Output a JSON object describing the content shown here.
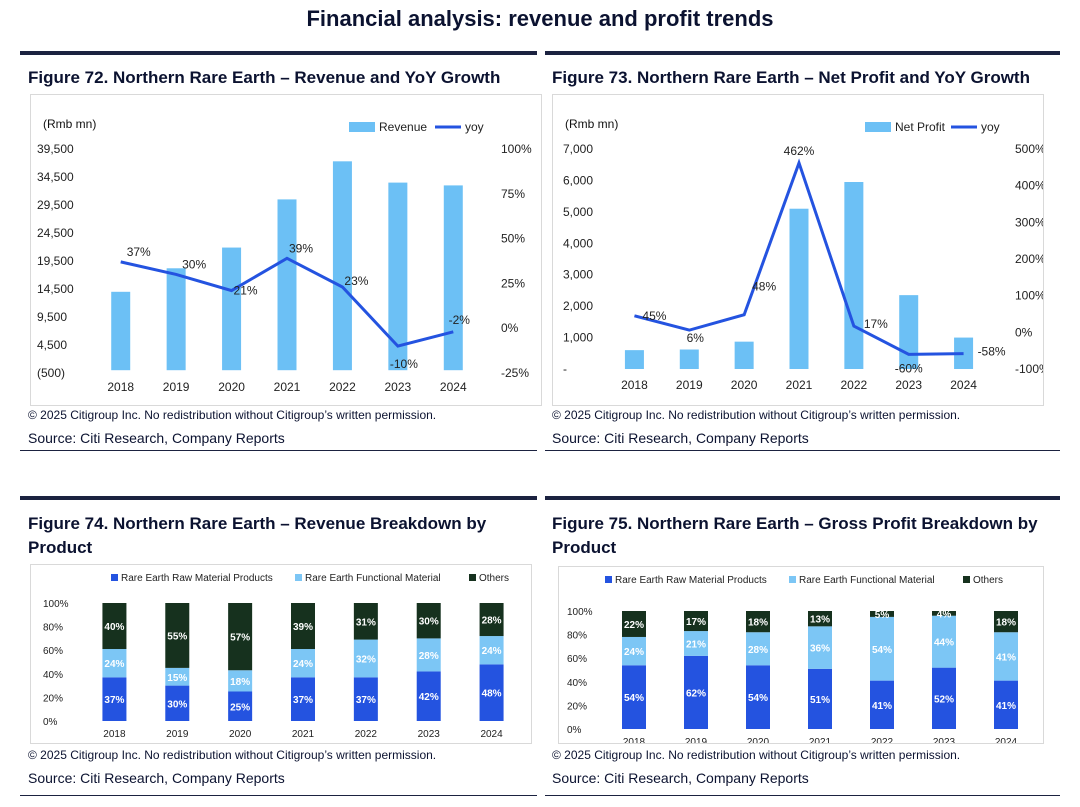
{
  "page": {
    "title": "Financial analysis: revenue and profit trends",
    "copyright": "© 2025 Citigroup Inc. No redistribution without Citigroup’s written permission.",
    "source": "Source: Citi Research, Company Reports"
  },
  "colors": {
    "revenue_bar": "#6cc0f5",
    "yoy_line": "#2453e0",
    "raw_material": "#2453e0",
    "functional_material": "#7cc6f5",
    "others": "#16311e",
    "rule": "#1b2240"
  },
  "chart_data": [
    {
      "id": "fig72",
      "type": "bar",
      "title": "Figure 72. Northern Rare Earth – Revenue and YoY Growth",
      "unit_label": "(Rmb mn)",
      "categories": [
        "2018",
        "2019",
        "2020",
        "2021",
        "2022",
        "2023",
        "2024"
      ],
      "series": [
        {
          "name": "Revenue",
          "type": "bar",
          "axis": "left",
          "values": [
            14000,
            18200,
            21900,
            30500,
            37300,
            33500,
            33000
          ]
        },
        {
          "name": "yoy",
          "type": "line",
          "axis": "right",
          "values": [
            37,
            30,
            21,
            39,
            23,
            -10,
            -2
          ],
          "labels": [
            "37%",
            "30%",
            "21%",
            "39%",
            "23%",
            "-10%",
            "-2%"
          ]
        }
      ],
      "left_axis": {
        "ylim": [
          -500,
          39500
        ],
        "ticks": [
          "(500)",
          "4,500",
          "9,500",
          "14,500",
          "19,500",
          "24,500",
          "29,500",
          "34,500",
          "39,500"
        ]
      },
      "right_axis": {
        "ylim": [
          -25,
          100
        ],
        "ticks": [
          "-25%",
          "0%",
          "25%",
          "50%",
          "75%",
          "100%"
        ]
      },
      "legend": "top-right"
    },
    {
      "id": "fig73",
      "type": "bar",
      "title": "Figure 73. Northern Rare Earth – Net Profit and YoY Growth",
      "unit_label": "(Rmb mn)",
      "categories": [
        "2018",
        "2019",
        "2020",
        "2021",
        "2022",
        "2023",
        "2024"
      ],
      "series": [
        {
          "name": "Net Profit",
          "type": "bar",
          "axis": "left",
          "values": [
            600,
            620,
            870,
            5100,
            5950,
            2350,
            1000
          ]
        },
        {
          "name": "yoy",
          "type": "line",
          "axis": "right",
          "values": [
            45,
            6,
            48,
            462,
            17,
            -60,
            -58
          ],
          "labels": [
            "45%",
            "6%",
            "48%",
            "462%",
            "17%",
            "-60%",
            "-58%"
          ]
        }
      ],
      "left_axis": {
        "ylim": [
          0,
          7000
        ],
        "ticks": [
          "-",
          "1,000",
          "2,000",
          "3,000",
          "4,000",
          "5,000",
          "6,000",
          "7,000"
        ]
      },
      "right_axis": {
        "ylim": [
          -100,
          500
        ],
        "ticks": [
          "-100%",
          "0%",
          "100%",
          "200%",
          "300%",
          "400%",
          "500%"
        ]
      },
      "legend": "top-right"
    },
    {
      "id": "fig74",
      "type": "bar",
      "stacked": true,
      "title": "Figure 74. Northern Rare Earth – Revenue Breakdown by Product",
      "categories": [
        "2018",
        "2019",
        "2020",
        "2021",
        "2022",
        "2023",
        "2024"
      ],
      "series": [
        {
          "name": "Rare Earth Raw Material Products",
          "values": [
            37,
            30,
            25,
            37,
            37,
            42,
            48
          ]
        },
        {
          "name": "Rare Earth Functional Material",
          "values": [
            24,
            15,
            18,
            24,
            32,
            28,
            24
          ]
        },
        {
          "name": "Others",
          "values": [
            40,
            55,
            57,
            39,
            31,
            30,
            28
          ]
        }
      ],
      "ylim": [
        0,
        100
      ],
      "ticks": [
        "0%",
        "20%",
        "40%",
        "60%",
        "80%",
        "100%"
      ],
      "legend": "top"
    },
    {
      "id": "fig75",
      "type": "bar",
      "stacked": true,
      "title": "Figure 75. Northern Rare Earth – Gross Profit Breakdown by Product",
      "categories": [
        "2018",
        "2019",
        "2020",
        "2021",
        "2022",
        "2023",
        "2024"
      ],
      "series": [
        {
          "name": "Rare Earth Raw Material Products",
          "values": [
            54,
            62,
            54,
            51,
            41,
            52,
            41
          ]
        },
        {
          "name": "Rare Earth Functional Material",
          "values": [
            24,
            21,
            28,
            36,
            54,
            44,
            41
          ]
        },
        {
          "name": "Others",
          "values": [
            22,
            17,
            18,
            13,
            5,
            4,
            18
          ]
        }
      ],
      "ylim": [
        0,
        100
      ],
      "ticks": [
        "0%",
        "20%",
        "40%",
        "60%",
        "80%",
        "100%"
      ],
      "legend": "top"
    }
  ]
}
